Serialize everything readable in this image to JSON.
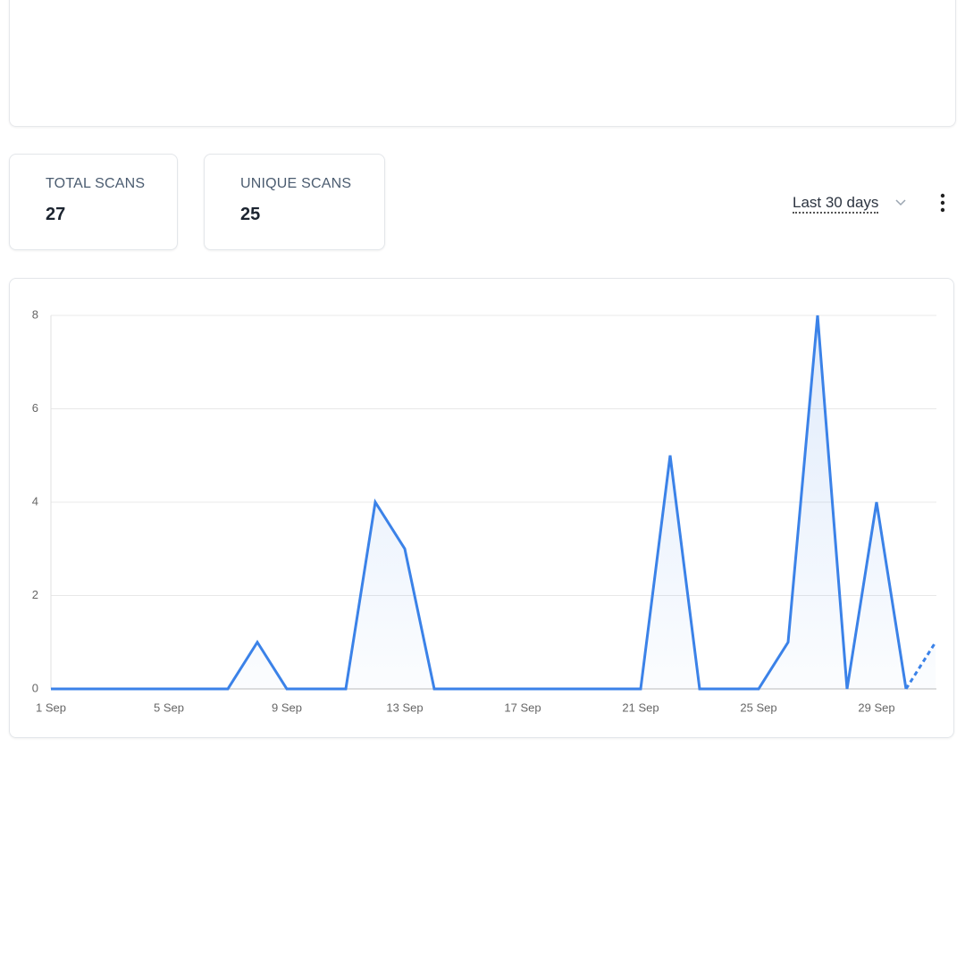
{
  "stats": [
    {
      "label": "TOTAL SCANS",
      "value": 27
    },
    {
      "label": "UNIQUE SCANS",
      "value": 25
    }
  ],
  "range_selector": "Last 30 days",
  "chart_data": {
    "type": "area",
    "categories": [
      "1 Sep",
      null,
      null,
      null,
      "5 Sep",
      null,
      null,
      null,
      "9 Sep",
      null,
      null,
      null,
      "13 Sep",
      null,
      null,
      null,
      "17 Sep",
      null,
      null,
      null,
      "21 Sep",
      null,
      null,
      null,
      "25 Sep",
      null,
      null,
      null,
      "29 Sep",
      null,
      null
    ],
    "series": [
      {
        "color": "#3b82e8",
        "values": [
          0,
          0,
          0,
          0,
          0,
          0,
          0,
          1,
          0,
          0,
          0,
          4,
          3,
          0,
          0,
          0,
          0,
          0,
          0,
          0,
          0,
          5,
          0,
          0,
          0,
          1,
          8,
          0,
          4,
          0,
          1
        ]
      }
    ],
    "ylim": [
      0,
      8
    ],
    "yticks": [
      0,
      2,
      4,
      6,
      8
    ],
    "grid": true,
    "dashed_last_segment": true
  }
}
